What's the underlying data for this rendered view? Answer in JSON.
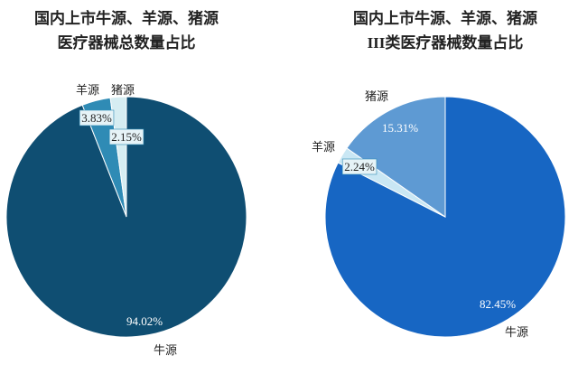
{
  "chart_data": [
    {
      "type": "pie",
      "title": [
        "国内上市牛源、羊源、猪源",
        "医疗器械总数量占比"
      ],
      "categories": [
        "牛源",
        "羊源",
        "猪源"
      ],
      "values": [
        94.02,
        3.83,
        2.15
      ],
      "value_labels": [
        "94.02%",
        "3.83%",
        "2.15%"
      ],
      "colors": [
        "#0f4e72",
        "#2f8bb5",
        "#d6edf2"
      ]
    },
    {
      "type": "pie",
      "title": [
        "国内上市牛源、羊源、猪源",
        "III类医疗器械数量占比"
      ],
      "categories": [
        "牛源",
        "羊源",
        "猪源"
      ],
      "values": [
        82.45,
        2.24,
        15.31
      ],
      "value_labels": [
        "82.45%",
        "2.24%",
        "15.31%"
      ],
      "colors": [
        "#1766c3",
        "#c9e7f4",
        "#5e9ad3"
      ]
    }
  ]
}
